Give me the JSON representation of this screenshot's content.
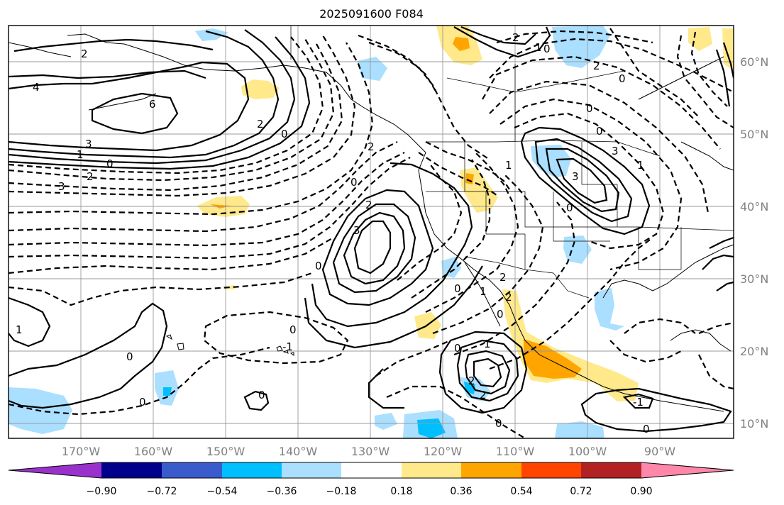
{
  "title": "2025091600 F084",
  "lon_labels": [
    "170°W",
    "160°W",
    "150°W",
    "140°W",
    "130°W",
    "120°W",
    "110°W",
    "100°W",
    "90°W"
  ],
  "lat_labels": [
    "60°N",
    "50°N",
    "40°N",
    "30°N",
    "20°N",
    "10°N"
  ],
  "colorbar": {
    "ticks": [
      "−0.90",
      "−0.72",
      "−0.54",
      "−0.36",
      "−0.18",
      "0.18",
      "0.36",
      "0.54",
      "0.72",
      "0.90"
    ],
    "colors": [
      "#9932cc",
      "#00008b",
      "#3a5bcc",
      "#00bfff",
      "#aadfff",
      "#ffffff",
      "#ffe98a",
      "#ffa500",
      "#ff4500",
      "#b22222",
      "#ff88aa"
    ]
  },
  "contour_labels": [
    "2",
    "4",
    "6",
    "2",
    "0",
    "3",
    "1",
    "0",
    "2",
    "3",
    "2",
    "0",
    "2",
    "3",
    "0",
    "2",
    "1",
    "0",
    "2",
    "0",
    "-1",
    "0",
    "0",
    "0",
    "0",
    "1",
    "2",
    "0",
    "3",
    "3",
    "0",
    "0",
    "1",
    "0",
    "2",
    "0",
    "2",
    "0",
    "1",
    "-1",
    "1",
    "2",
    "0",
    "1",
    "0"
  ],
  "shading_colors": {
    "light_blue": "#aadfff",
    "blue": "#00bfff",
    "yellow": "#ffe98a",
    "orange": "#ffa500"
  }
}
